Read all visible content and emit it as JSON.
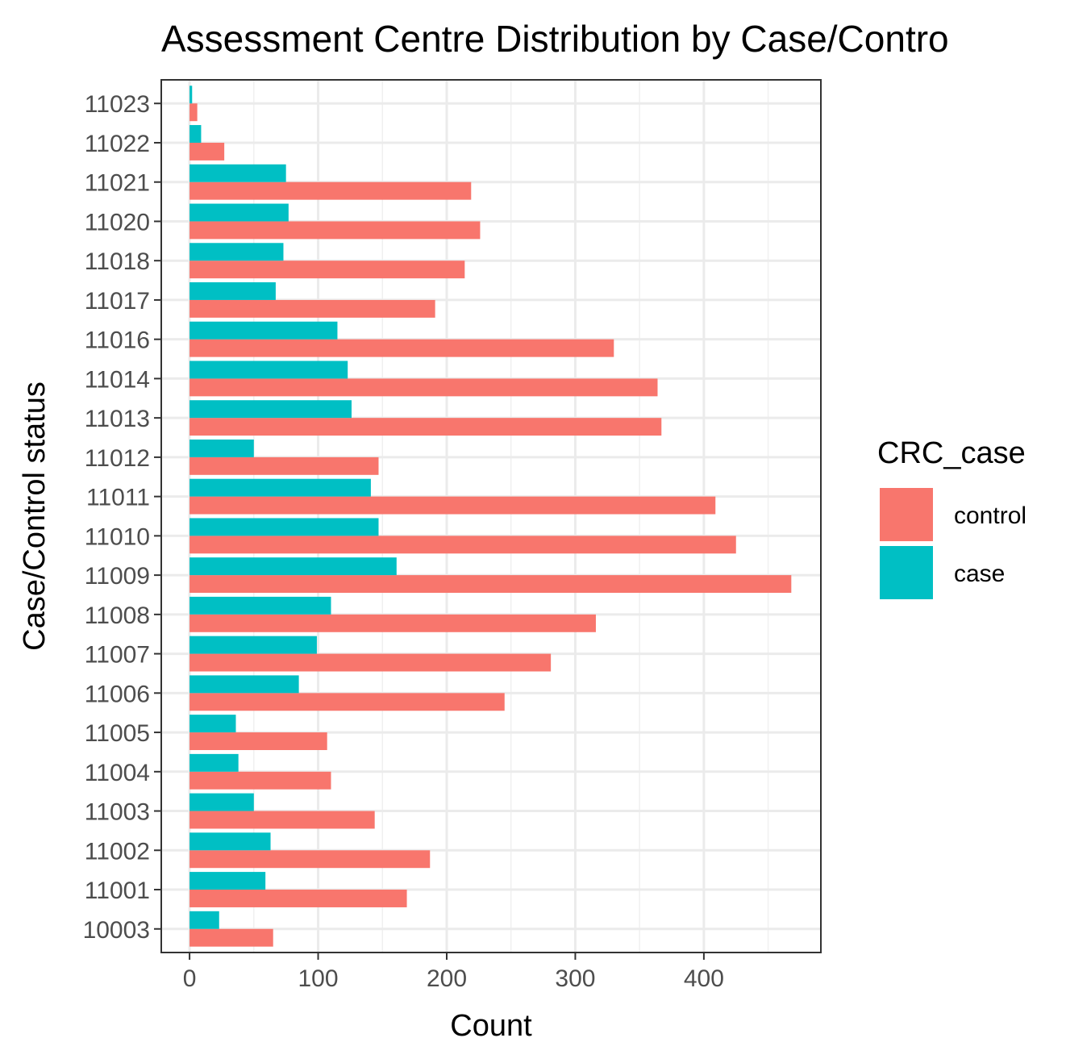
{
  "chart_data": {
    "type": "bar",
    "orientation": "horizontal",
    "title": "Assessment Centre Distribution by Case/Contro",
    "xlabel": "Count",
    "ylabel": "Case/Control status",
    "xlim": [
      -22,
      491
    ],
    "xticks": [
      0,
      100,
      200,
      300,
      400
    ],
    "grid": true,
    "categories": [
      "10003",
      "11001",
      "11002",
      "11003",
      "11004",
      "11005",
      "11006",
      "11007",
      "11008",
      "11009",
      "11010",
      "11011",
      "11012",
      "11013",
      "11014",
      "11016",
      "11017",
      "11018",
      "11020",
      "11021",
      "11022",
      "11023"
    ],
    "series": [
      {
        "name": "control",
        "color": "#F8766D",
        "values": [
          65,
          169,
          187,
          144,
          110,
          107,
          245,
          281,
          316,
          468,
          425,
          409,
          147,
          367,
          364,
          330,
          191,
          214,
          226,
          219,
          27,
          6
        ]
      },
      {
        "name": "case",
        "color": "#00BFC4",
        "values": [
          23,
          59,
          63,
          50,
          38,
          36,
          85,
          99,
          110,
          161,
          147,
          141,
          50,
          126,
          123,
          115,
          67,
          73,
          77,
          75,
          9,
          2
        ]
      }
    ],
    "legend": {
      "title": "CRC_case",
      "position": "right"
    }
  }
}
